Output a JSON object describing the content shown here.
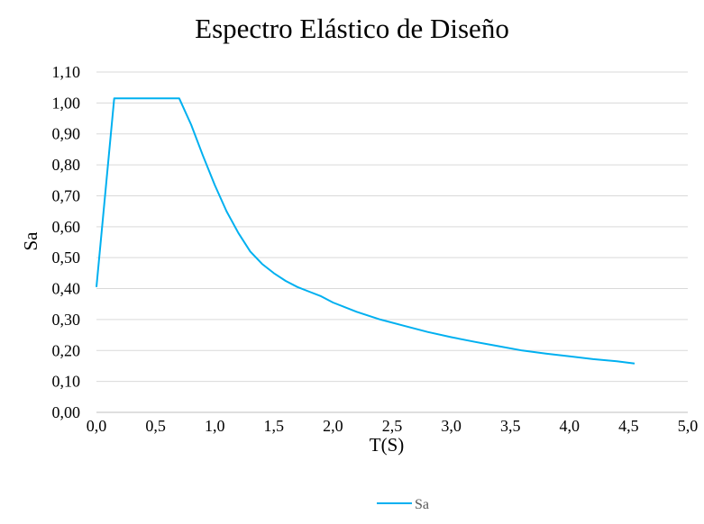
{
  "chart_data": {
    "type": "line",
    "title": "Espectro Elástico de Diseño",
    "xlabel": "T(S)",
    "ylabel": "Sa",
    "xlim": [
      0,
      5
    ],
    "ylim": [
      0,
      1.1
    ],
    "x_ticks": [
      "0,0",
      "0,5",
      "1,0",
      "1,5",
      "2,0",
      "2,5",
      "3,0",
      "3,5",
      "4,0",
      "4,5",
      "5,0"
    ],
    "y_ticks": [
      "0,00",
      "0,10",
      "0,20",
      "0,30",
      "0,40",
      "0,50",
      "0,60",
      "0,70",
      "0,80",
      "0,90",
      "1,00",
      "1,10"
    ],
    "grid": "horizontal",
    "legend": "bottom",
    "series": [
      {
        "name": "Sa",
        "color": "#00B0F0",
        "x": [
          0.0,
          0.15,
          0.7,
          0.8,
          0.9,
          1.0,
          1.1,
          1.2,
          1.3,
          1.4,
          1.5,
          1.6,
          1.7,
          1.8,
          1.9,
          2.0,
          2.2,
          2.4,
          2.6,
          2.8,
          3.0,
          3.2,
          3.4,
          3.6,
          3.8,
          4.0,
          4.2,
          4.4,
          4.55
        ],
        "y": [
          0.405,
          1.015,
          1.015,
          0.93,
          0.83,
          0.735,
          0.65,
          0.58,
          0.52,
          0.48,
          0.45,
          0.425,
          0.405,
          0.39,
          0.375,
          0.355,
          0.325,
          0.3,
          0.28,
          0.26,
          0.243,
          0.228,
          0.214,
          0.2,
          0.19,
          0.181,
          0.172,
          0.165,
          0.158
        ]
      }
    ]
  }
}
